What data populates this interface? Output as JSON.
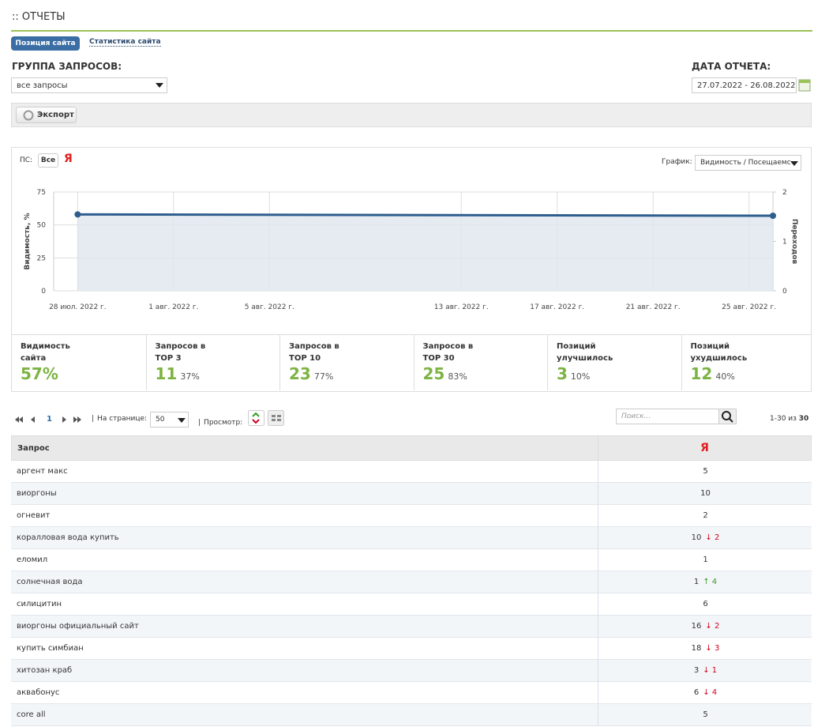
{
  "header": {
    "title": ":: ОТЧЕТЫ"
  },
  "tabs": [
    "Позиция сайта",
    "Статистика сайта"
  ],
  "filters": {
    "group_label": "ГРУППА ЗАПРОСОВ:",
    "group_value": "все запросы",
    "date_label": "ДАТА ОТЧЕТА:",
    "date_value": "27.07.2022 - 26.08.2022"
  },
  "toolbar": {
    "export": "Экспорт"
  },
  "chart_panel": {
    "ps_label": "ПС:",
    "ps_all": "Все",
    "ps_yandex": "Я",
    "graph_label": "График:",
    "graph_value": "Видимость / Посещаемс"
  },
  "chart_data": {
    "type": "line",
    "y_label": "Видимость, %",
    "y2_label": "Переходов",
    "x": [
      "2022-07-28",
      "2022-08-26"
    ],
    "series": [
      {
        "color": "#2e5d8e",
        "values": [
          58,
          57
        ]
      }
    ],
    "xlim": [
      "2022-07-27",
      "2022-08-26"
    ],
    "xticks": [
      {
        "value": "2022-07-28",
        "label": "28 июл. 2022 г."
      },
      {
        "value": "2022-08-01",
        "label": "1 авг. 2022 г."
      },
      {
        "value": "2022-08-05",
        "label": "5 авг. 2022 г."
      },
      {
        "value": "2022-08-13",
        "label": "13 авг. 2022 г."
      },
      {
        "value": "2022-08-17",
        "label": "17 авг. 2022 г."
      },
      {
        "value": "2022-08-21",
        "label": "21 авг. 2022 г."
      },
      {
        "value": "2022-08-25",
        "label": "25 авг. 2022 г."
      }
    ],
    "ylim": [
      0,
      75
    ],
    "yticks": [
      0,
      25,
      50,
      75
    ],
    "y2lim": [
      0,
      2
    ],
    "y2ticks": [
      0,
      1,
      2
    ],
    "grid": true,
    "area_color": "#dfe6ee"
  },
  "stats": [
    {
      "label": "Видимость сайта",
      "value": "57%"
    },
    {
      "label": "Запросов в TOP 3",
      "value": "11",
      "percent": "37%"
    },
    {
      "label": "Запросов в TOP 10",
      "value": "23",
      "percent": "77%"
    },
    {
      "label": "Запросов в TOP 30",
      "value": "25",
      "percent": "83%"
    },
    {
      "label": "Позиций улучшилось",
      "value": "3",
      "percent": "10%"
    },
    {
      "label": "Позиций ухудшилось",
      "value": "12",
      "percent": "40%"
    }
  ],
  "pager": {
    "page": "1",
    "per_page_label": "На странице:",
    "per_page": "50",
    "view_label": "Просмотр:",
    "search_placeholder": "Поиск...",
    "range": "1-30 из",
    "total": "30"
  },
  "table": {
    "headers": [
      "Запрос",
      "Я"
    ],
    "rows": [
      {
        "query": "аргент макс",
        "position": "5"
      },
      {
        "query": "виоргоны",
        "position": "10"
      },
      {
        "query": "огневит",
        "position": "2"
      },
      {
        "query": "коралловая вода купить",
        "position": "10",
        "change": "↓ 2",
        "color": "#d0021b"
      },
      {
        "query": "еломил",
        "position": "1"
      },
      {
        "query": "солнечная вода",
        "position": "1",
        "change": "↑ 4",
        "color": "#3a9a2a"
      },
      {
        "query": "силицитин",
        "position": "6"
      },
      {
        "query": "виоргоны официальный сайт",
        "position": "16",
        "change": "↓ 2",
        "color": "#d0021b"
      },
      {
        "query": "купить симбиан",
        "position": "18",
        "change": "↓ 3",
        "color": "#d0021b"
      },
      {
        "query": "хитозан краб",
        "position": "3",
        "change": "↓ 1",
        "color": "#d0021b"
      },
      {
        "query": "аквабонус",
        "position": "6",
        "change": "↓ 4",
        "color": "#d0021b"
      },
      {
        "query": "core all",
        "position": "5"
      }
    ]
  }
}
